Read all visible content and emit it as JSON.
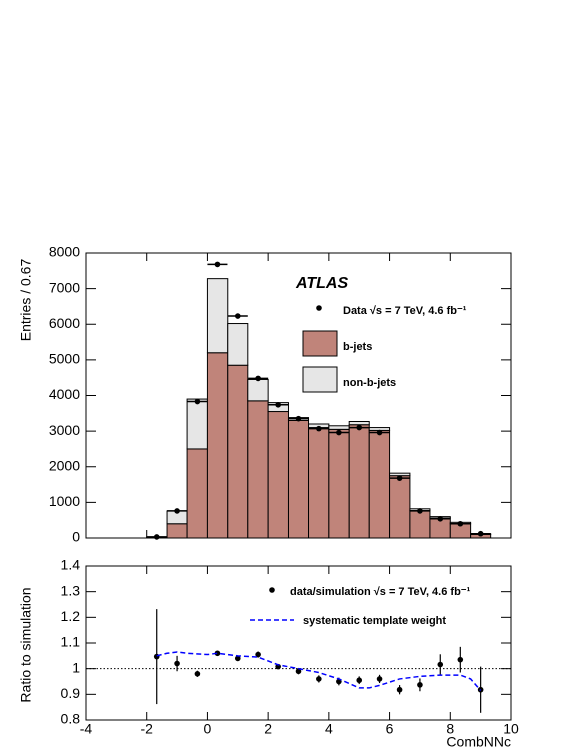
{
  "chart_data": [
    {
      "type": "histogram",
      "ylabel": "Entries / 0.67",
      "annotation": "ATLAS",
      "xlim": [
        -4,
        10
      ],
      "ylim": [
        0,
        8000
      ],
      "yticks": [
        0,
        1000,
        2000,
        3000,
        4000,
        5000,
        6000,
        7000,
        8000
      ],
      "bins": [
        -4,
        -3.33,
        -2.67,
        -2,
        -1.33,
        -0.67,
        0,
        0.67,
        1.33,
        2,
        2.67,
        3.33,
        4,
        4.67,
        5.33,
        6,
        6.67,
        7.33,
        8,
        8.67,
        9.33,
        10
      ],
      "series": [
        {
          "name": "b-jets",
          "color": "#c0847a",
          "values": [
            0,
            0,
            0,
            20,
            400,
            2500,
            5200,
            4850,
            3850,
            3550,
            3300,
            3100,
            3050,
            3180,
            3020,
            1750,
            770,
            560,
            400,
            100,
            0
          ]
        },
        {
          "name": "non-b-jets",
          "color": "#e6e6e6",
          "values": [
            0,
            0,
            0,
            10,
            360,
            1400,
            2080,
            1170,
            600,
            250,
            80,
            100,
            100,
            90,
            80,
            70,
            50,
            40,
            40,
            20,
            0
          ]
        }
      ],
      "data": {
        "name": "Data  √s = 7 TeV, 4.6 fb⁻¹",
        "color": "#000000",
        "x": [
          -1.67,
          -1,
          -0.33,
          0.33,
          1,
          1.67,
          2.33,
          3,
          3.67,
          4.33,
          5,
          5.67,
          6.33,
          7,
          7.67,
          8.33,
          9
        ],
        "values": [
          30,
          760,
          3830,
          7680,
          6230,
          4480,
          3740,
          3350,
          3070,
          2960,
          3100,
          2960,
          1680,
          760,
          540,
          400,
          120
        ],
        "x_error": 0.33
      }
    },
    {
      "type": "ratio",
      "ylabel": "Ratio to simulation",
      "xlabel": "CombNNc",
      "xlim": [
        -4,
        10
      ],
      "xticks": [
        -4,
        -2,
        0,
        2,
        4,
        6,
        8,
        10
      ],
      "ylim": [
        0.8,
        1.4
      ],
      "yticks": [
        0.8,
        0.9,
        1,
        1.1,
        1.2,
        1.3,
        1.4
      ],
      "reference_line": 1,
      "series": [
        {
          "name": "data/simulation  √s = 7 TeV, 4.6 fb⁻¹",
          "type": "scatter",
          "color": "#000000",
          "x": [
            -1.67,
            -1,
            -0.33,
            0.33,
            1,
            1.67,
            2.33,
            3,
            3.67,
            4.33,
            5,
            5.67,
            6.33,
            7,
            7.67,
            8.33,
            9
          ],
          "values": [
            1.047,
            1.02,
            0.98,
            1.06,
            1.04,
            1.055,
            1.008,
            0.99,
            0.96,
            0.95,
            0.955,
            0.96,
            0.918,
            0.937,
            1.016,
            1.035,
            0.918
          ],
          "errors": [
            0.185,
            0.03,
            0.012,
            0.008,
            0.01,
            0.012,
            0.01,
            0.012,
            0.014,
            0.015,
            0.015,
            0.016,
            0.018,
            0.025,
            0.04,
            0.05,
            0.09
          ]
        },
        {
          "name": "systematic template weight",
          "type": "line",
          "color": "#0000ff",
          "x": [
            -1.67,
            -1.33,
            -1,
            -0.67,
            0,
            0.33,
            0.67,
            1,
            1.67,
            2,
            2.33,
            3,
            3.67,
            4.33,
            5,
            5.33,
            5.67,
            6.33,
            7,
            7.67,
            8.33,
            8.67,
            9
          ],
          "values": [
            1.05,
            1.06,
            1.065,
            1.06,
            1.055,
            1.06,
            1.055,
            1.05,
            1.045,
            1.03,
            1.015,
            1.0,
            0.985,
            0.96,
            0.925,
            0.925,
            0.935,
            0.96,
            0.97,
            0.975,
            0.975,
            0.96,
            0.915
          ]
        }
      ]
    }
  ]
}
